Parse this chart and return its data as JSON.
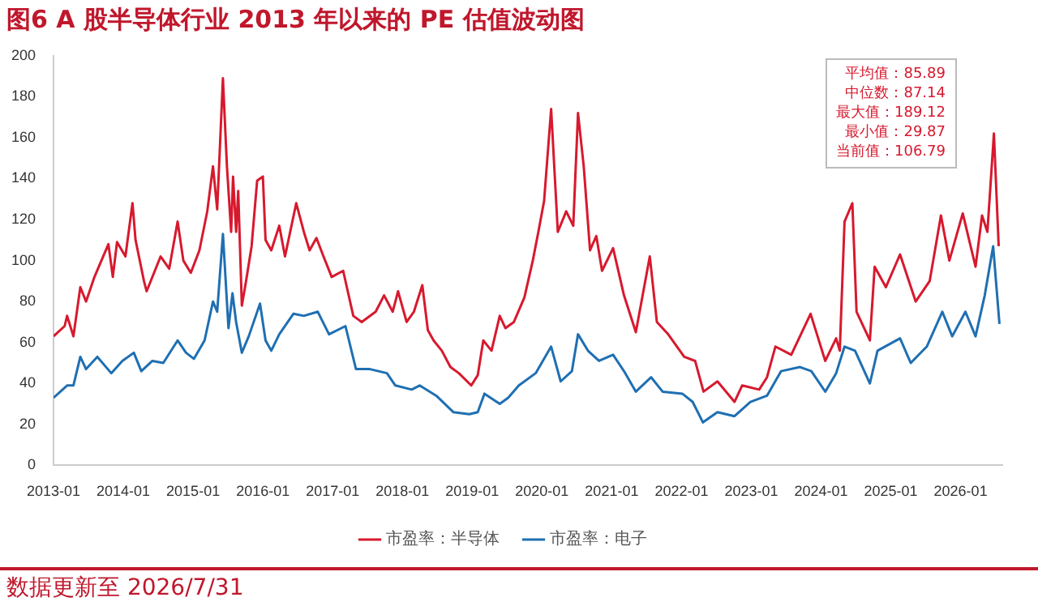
{
  "chart_data": {
    "type": "line",
    "title": "图6  A 股半导体行业 2013 年以来的 PE 估值波动图",
    "xlim": [
      "2013-01-01",
      "2026-08-07"
    ],
    "xticks": [
      "2013-01",
      "2014-01",
      "2015-01",
      "2016-01",
      "2017-01",
      "2018-01",
      "2019-01",
      "2020-01",
      "2021-01",
      "2022-01",
      "2023-01",
      "2024-01",
      "2025-01",
      "2026-01"
    ],
    "ylim": [
      0,
      200
    ],
    "yticks": [
      0,
      20,
      40,
      60,
      80,
      100,
      120,
      140,
      160,
      180,
      200
    ],
    "grid": false,
    "legend": "bottom",
    "series": [
      {
        "name": "市盈率：半导体",
        "color": "#d7192e",
        "x": [
          "2013-01-01",
          "2013-02-28",
          "2013-03-13",
          "2013-04-15",
          "2013-05-21",
          "2013-06-20",
          "2013-08-03",
          "2013-10-15",
          "2013-11-07",
          "2013-11-29",
          "2014-01-12",
          "2014-02-18",
          "2014-03-06",
          "2014-04-19",
          "2014-05-03",
          "2014-07-15",
          "2014-08-29",
          "2014-10-12",
          "2014-11-11",
          "2014-12-20",
          "2015-02-03",
          "2015-03-16",
          "2015-04-15",
          "2015-05-07",
          "2015-06-06",
          "2015-06-27",
          "2015-07-19",
          "2015-07-29",
          "2015-08-14",
          "2015-08-25",
          "2015-09-13",
          "2015-10-05",
          "2015-11-03",
          "2015-12-02",
          "2016-01-01",
          "2016-01-15",
          "2016-02-14",
          "2016-03-27",
          "2016-04-26",
          "2016-06-24",
          "2016-08-03",
          "2016-09-02",
          "2016-10-08",
          "2016-11-14",
          "2016-12-27",
          "2017-02-25",
          "2017-04-19",
          "2017-06-02",
          "2017-08-14",
          "2017-09-27",
          "2017-11-11",
          "2017-12-09",
          "2018-01-23",
          "2018-03-02",
          "2018-04-15",
          "2018-05-14",
          "2018-06-13",
          "2018-07-26",
          "2018-09-09",
          "2018-10-23",
          "2018-12-27",
          "2019-01-30",
          "2019-02-28",
          "2019-04-12",
          "2019-05-25",
          "2019-06-24",
          "2019-08-07",
          "2019-10-01",
          "2019-11-14",
          "2019-12-13",
          "2020-01-12",
          "2020-02-18",
          "2020-03-24",
          "2020-05-07",
          "2020-06-13",
          "2020-07-08",
          "2020-08-07",
          "2020-09-09",
          "2020-10-12",
          "2020-11-11",
          "2021-01-08",
          "2021-03-06",
          "2021-05-07",
          "2021-07-19",
          "2021-08-25",
          "2021-10-23",
          "2022-01-15",
          "2022-03-13",
          "2022-04-26",
          "2022-07-08",
          "2022-10-05",
          "2022-11-14",
          "2023-02-11",
          "2023-03-24",
          "2023-05-07",
          "2023-07-29",
          "2023-11-07",
          "2024-01-23",
          "2024-03-20",
          "2024-04-08",
          "2024-05-03",
          "2024-06-13",
          "2024-07-05",
          "2024-09-13",
          "2024-10-08",
          "2024-12-06",
          "2025-02-18",
          "2025-05-11",
          "2025-07-23",
          "2025-09-20",
          "2025-11-03",
          "2026-01-12",
          "2026-03-20",
          "2026-04-23",
          "2026-05-21",
          "2026-06-24",
          "2026-07-19"
        ],
        "values": [
          63,
          68,
          73,
          63,
          87,
          80,
          92,
          108,
          92,
          109,
          102,
          128,
          110,
          90,
          85,
          102,
          96,
          119,
          100,
          94,
          105,
          124,
          146,
          125,
          189,
          146,
          114,
          141,
          114,
          134,
          78,
          90,
          107,
          139,
          141,
          110,
          105,
          117,
          102,
          128,
          114,
          105,
          111,
          102,
          92,
          95,
          73,
          70,
          75,
          83,
          75,
          85,
          70,
          75,
          88,
          66,
          61,
          56,
          48,
          45,
          39,
          44,
          61,
          56,
          73,
          67,
          70,
          82,
          100,
          114,
          129,
          174,
          114,
          124,
          117,
          172,
          146,
          105,
          112,
          95,
          106,
          83,
          65,
          102,
          70,
          64,
          53,
          51,
          36,
          41,
          31,
          39,
          37,
          43,
          58,
          54,
          74,
          51,
          62,
          56,
          119,
          128,
          75,
          61,
          97,
          87,
          103,
          80,
          90,
          122,
          100,
          123,
          97,
          122,
          114,
          162,
          107
        ]
      },
      {
        "name": "市盈率：电子",
        "color": "#1f6fb2",
        "x": [
          "2013-01-01",
          "2013-03-13",
          "2013-04-15",
          "2013-05-21",
          "2013-06-20",
          "2013-08-18",
          "2013-10-30",
          "2013-12-27",
          "2014-02-25",
          "2014-04-05",
          "2014-06-02",
          "2014-07-29",
          "2014-10-12",
          "2014-11-25",
          "2015-01-05",
          "2015-03-02",
          "2015-04-15",
          "2015-05-07",
          "2015-06-06",
          "2015-07-05",
          "2015-07-26",
          "2015-08-14",
          "2015-09-13",
          "2015-10-19",
          "2015-12-17",
          "2016-01-15",
          "2016-02-14",
          "2016-03-27",
          "2016-06-09",
          "2016-08-03",
          "2016-10-15",
          "2016-12-13",
          "2017-03-09",
          "2017-05-03",
          "2017-07-15",
          "2017-10-12",
          "2017-11-25",
          "2018-02-18",
          "2018-04-01",
          "2018-06-27",
          "2018-09-24",
          "2018-12-17",
          "2019-01-30",
          "2019-03-06",
          "2019-05-25",
          "2019-07-08",
          "2019-09-02",
          "2019-11-29",
          "2020-02-18",
          "2020-04-08",
          "2020-06-06",
          "2020-07-08",
          "2020-08-29",
          "2020-10-26",
          "2021-01-08",
          "2021-03-06",
          "2021-05-07",
          "2021-07-26",
          "2021-09-24",
          "2022-01-05",
          "2022-02-28",
          "2022-04-23",
          "2022-07-08",
          "2022-10-05",
          "2022-12-27",
          "2023-03-24",
          "2023-06-06",
          "2023-09-13",
          "2023-11-11",
          "2024-01-23",
          "2024-03-20",
          "2024-05-03",
          "2024-06-27",
          "2024-09-13",
          "2024-10-23",
          "2025-02-18",
          "2025-04-15",
          "2025-07-08",
          "2025-09-27",
          "2025-11-18",
          "2026-01-26",
          "2026-03-20",
          "2026-05-07",
          "2026-06-20",
          "2026-07-23"
        ],
        "values": [
          33,
          39,
          39,
          53,
          47,
          53,
          45,
          51,
          55,
          46,
          51,
          50,
          61,
          55,
          52,
          61,
          80,
          75,
          113,
          67,
          84,
          70,
          55,
          63,
          79,
          61,
          56,
          64,
          74,
          73,
          75,
          64,
          68,
          47,
          47,
          45,
          39,
          37,
          39,
          34,
          26,
          25,
          26,
          35,
          30,
          33,
          39,
          45,
          58,
          41,
          46,
          64,
          56,
          51,
          54,
          46,
          36,
          43,
          36,
          35,
          31,
          21,
          26,
          24,
          31,
          34,
          46,
          48,
          46,
          36,
          45,
          58,
          56,
          40,
          56,
          62,
          50,
          58,
          75,
          63,
          75,
          63,
          83,
          107,
          69
        ]
      }
    ],
    "annotations": [
      "平均值：85.89",
      "中位数：87.14",
      "最大值：189.12",
      "最小值：29.87",
      "当前值：106.79",
      "数据更新至 2026/7/31"
    ]
  }
}
